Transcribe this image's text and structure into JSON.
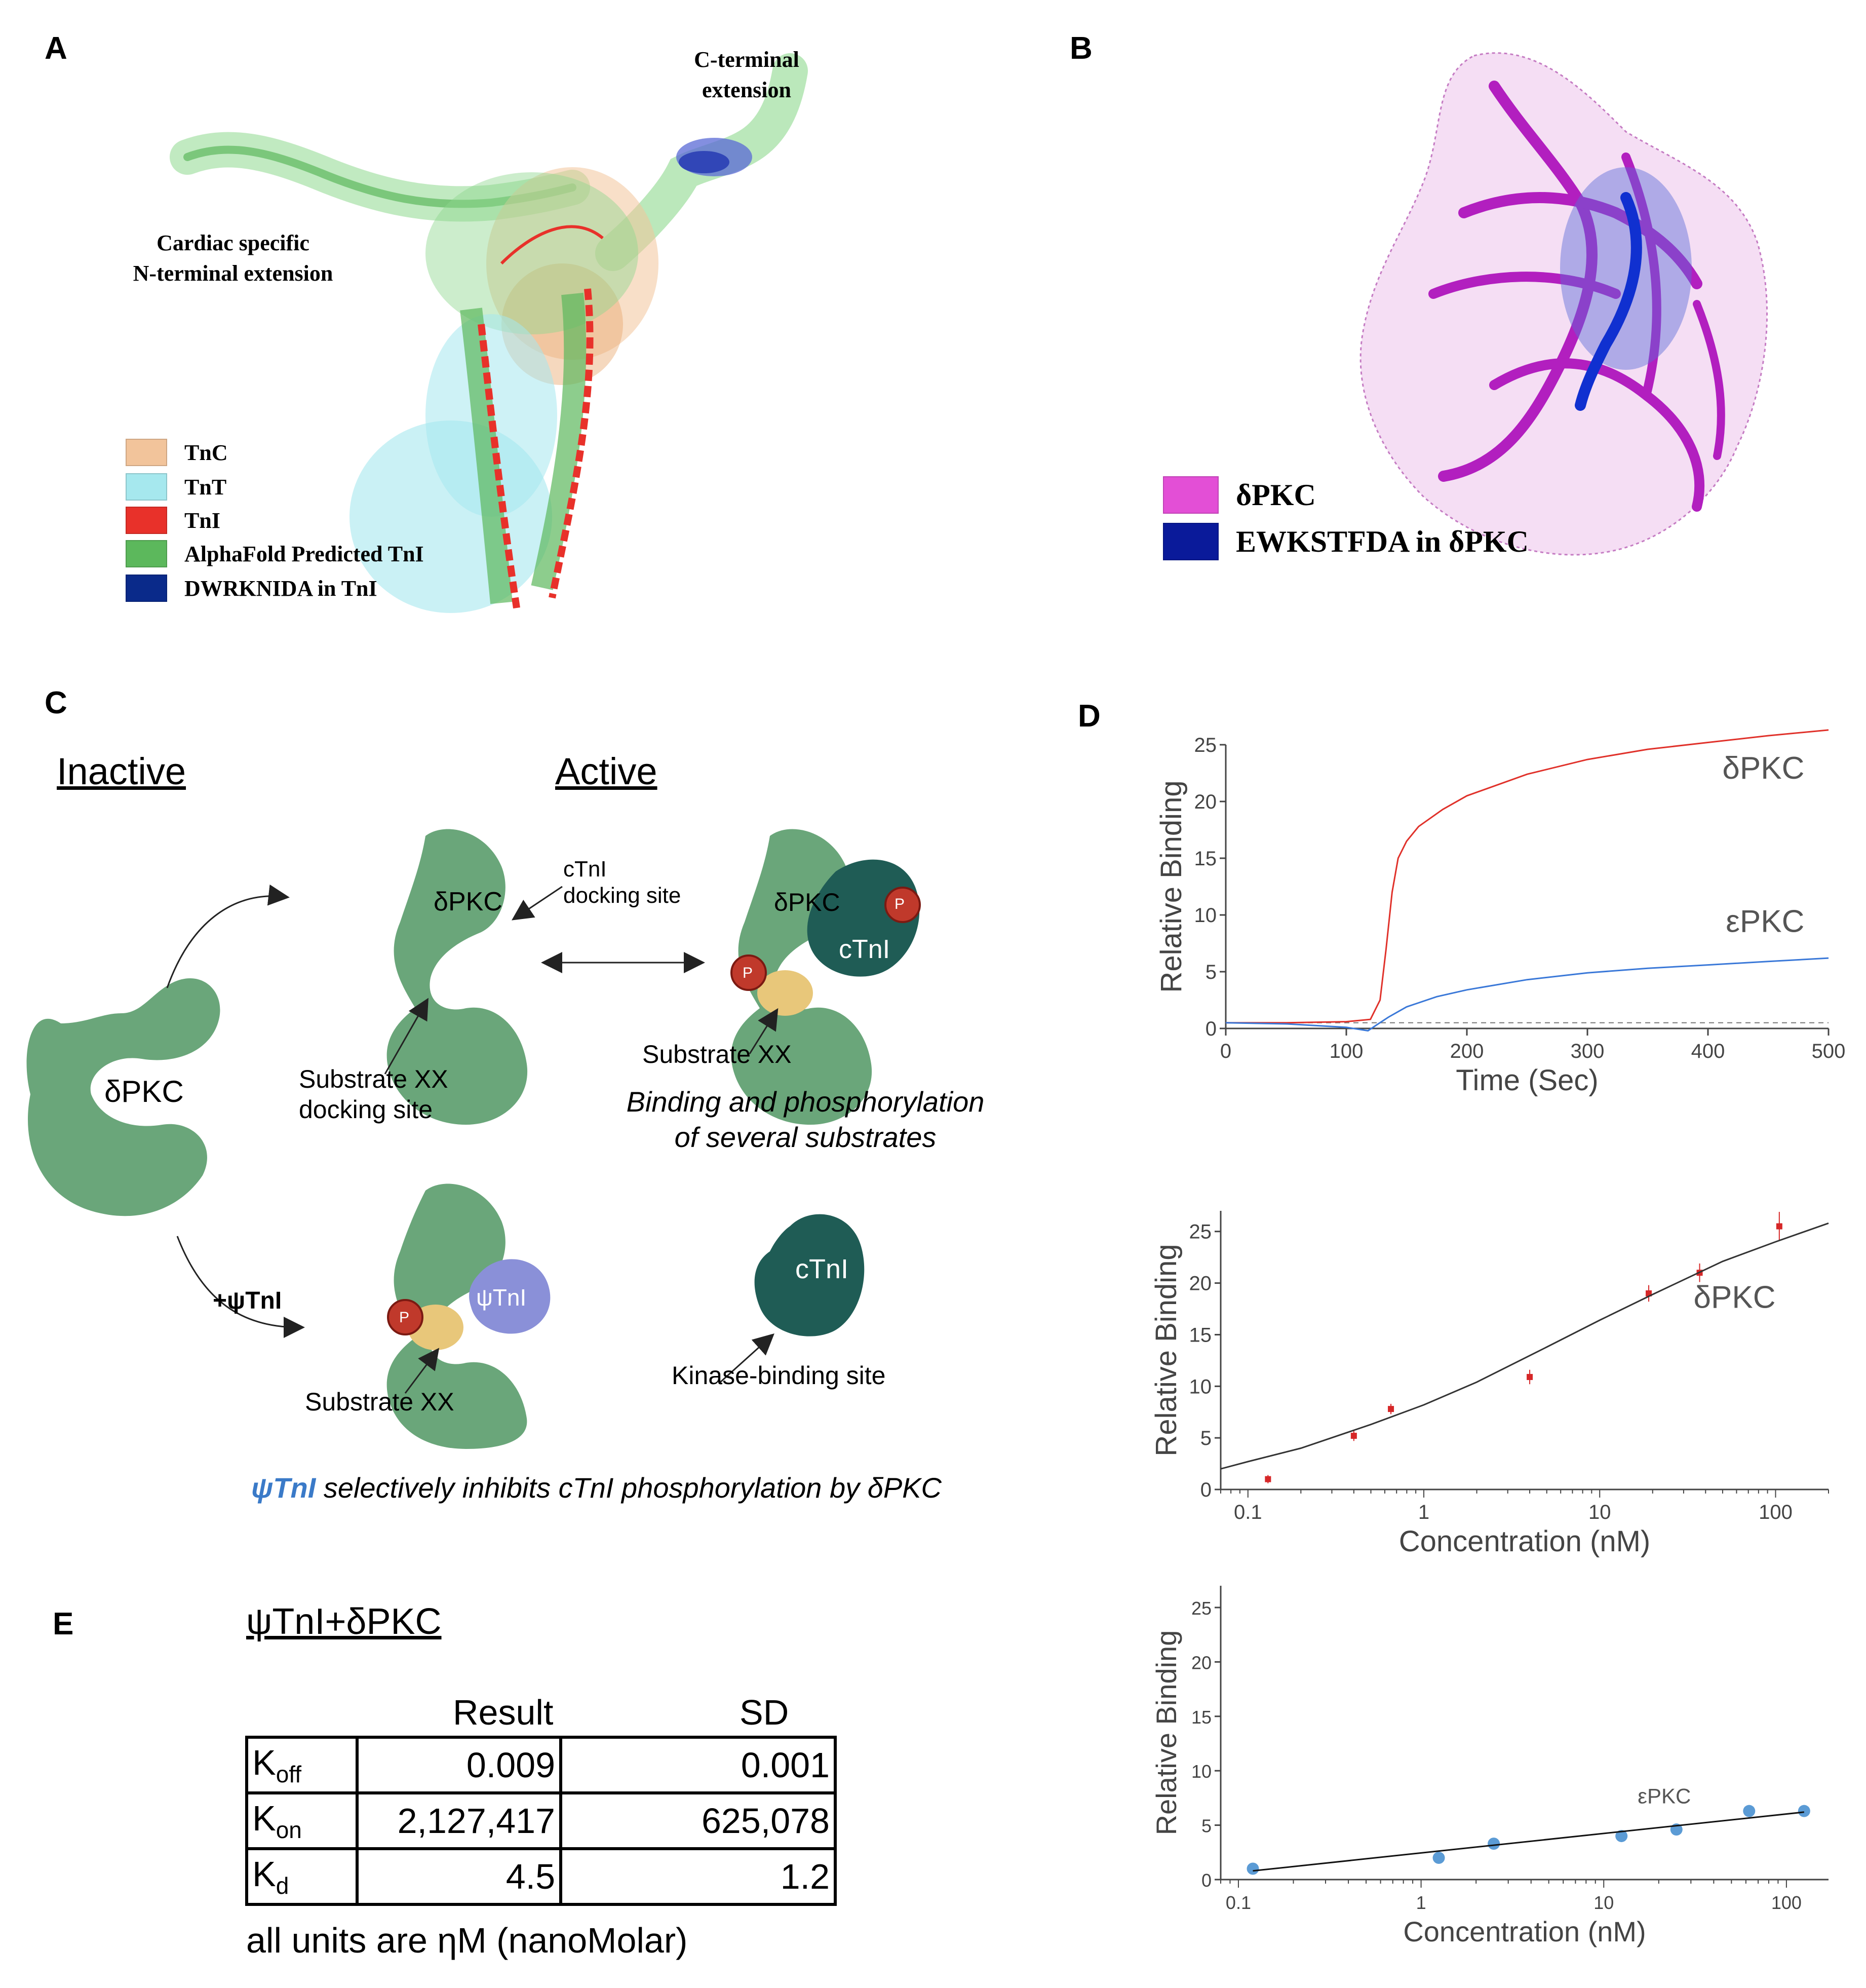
{
  "panels": {
    "A": {
      "label": "A",
      "c_terminal": [
        "C-terminal",
        "extension"
      ],
      "n_terminal": [
        "Cardiac specific",
        "N-terminal extension"
      ],
      "legend": [
        {
          "text": "TnC",
          "color": "#f2c49b"
        },
        {
          "text": "TnT",
          "color": "#a6e8ee"
        },
        {
          "text": "TnI",
          "color": "#e8312a"
        },
        {
          "text": "AlphaFold Predicted TnI",
          "color": "#5cb85c"
        },
        {
          "text": "DWRKNIDA in TnI",
          "color": "#0a2a8a"
        }
      ]
    },
    "B": {
      "label": "B",
      "legend": [
        {
          "text": "δPKC",
          "color": "#e34fd6"
        },
        {
          "text": "EWKSTFDA in δPKC",
          "color": "#0a1a9a"
        }
      ]
    },
    "C": {
      "label": "C",
      "inactive": "Inactive",
      "active": "Active",
      "dpkc_big": "δPKC",
      "dpkc_mid": "δPKC",
      "ctni_dock": [
        "cTnI",
        "docking site"
      ],
      "substrate_dock": [
        "Substrate XX",
        "docking site"
      ],
      "dpkc_right": "δPKC",
      "ctni_right": "cTnI",
      "p": "P",
      "substrate_right": "Substrate XX",
      "binding": [
        "Binding and phosphorylation",
        "of several substrates"
      ],
      "psi_arrow": "+ψTnI",
      "psi_label": "ψTnI",
      "substrate_bottom": "Substrate XX",
      "ctni_bottom": "cTnI",
      "kinase_site": "Kinase-binding site",
      "caption_psi": "ψTnI",
      "caption_rest": " selectively inhibits cTnI phosphorylation by δPKC"
    },
    "D": {
      "label": "D"
    },
    "E": {
      "label": "E",
      "title": "ψTnI+δPKC",
      "col_result": "Result",
      "col_sd": "SD",
      "rows": [
        {
          "name": "K",
          "sub": "off",
          "result": "0.009",
          "sd": "0.001"
        },
        {
          "name": "K",
          "sub": "on",
          "result": "2,127,417",
          "sd": "625,078"
        },
        {
          "name": "K",
          "sub": "d",
          "result": "4.5",
          "sd": "1.2"
        }
      ],
      "note": "all units are ηM (nanoMolar)"
    }
  },
  "chart_data": [
    {
      "type": "line",
      "title": "",
      "xlabel": "Time (Sec)",
      "ylabel": "Relative Binding",
      "xlim": [
        0,
        500
      ],
      "ylim": [
        0,
        25
      ],
      "xticks": [
        0,
        100,
        200,
        300,
        400,
        500
      ],
      "yticks": [
        0,
        5,
        10,
        15,
        20,
        25
      ],
      "baseline": 0.5,
      "series": [
        {
          "name": "δPKC",
          "color": "#e0312a",
          "x": [
            0,
            50,
            100,
            120,
            128,
            133,
            138,
            143,
            150,
            160,
            180,
            200,
            250,
            300,
            350,
            400,
            450,
            500
          ],
          "y": [
            0.5,
            0.5,
            0.6,
            0.8,
            2.5,
            7,
            12,
            15,
            16.5,
            17.8,
            19.3,
            20.5,
            22.4,
            23.7,
            24.6,
            25.2,
            25.8,
            26.3
          ]
        },
        {
          "name": "εPKC",
          "color": "#3a78d8",
          "x": [
            0,
            50,
            100,
            118,
            125,
            135,
            150,
            175,
            200,
            250,
            300,
            350,
            400,
            450,
            500
          ],
          "y": [
            0.5,
            0.4,
            0.1,
            -0.2,
            0.3,
            1.0,
            1.9,
            2.8,
            3.4,
            4.3,
            4.9,
            5.3,
            5.6,
            5.9,
            6.2
          ]
        }
      ]
    },
    {
      "type": "scatter",
      "title": "",
      "xlabel": "Concentration (nM)",
      "ylabel": "Relative Binding",
      "xscale": "log",
      "xlim": [
        0.07,
        200
      ],
      "ylim": [
        0,
        27
      ],
      "xtick_labels": [
        "0.1",
        "1",
        "10",
        "100"
      ],
      "yticks": [
        0,
        5,
        10,
        15,
        20,
        25
      ],
      "series": [
        {
          "name": "δPKC",
          "color": "#d62728",
          "x": [
            0.13,
            0.4,
            0.65,
            4,
            19,
            37,
            105
          ],
          "y": [
            1.0,
            5.2,
            7.8,
            10.9,
            19.0,
            21.0,
            25.5
          ],
          "err": [
            0.4,
            0.5,
            0.5,
            0.7,
            0.8,
            0.9,
            1.4
          ]
        },
        {
          "name": "fit",
          "color": "#333333",
          "x": [
            0.07,
            0.1,
            0.2,
            0.5,
            1,
            2,
            5,
            10,
            20,
            50,
            100,
            200
          ],
          "y": [
            2.0,
            2.7,
            4.0,
            6.3,
            8.2,
            10.4,
            13.8,
            16.4,
            18.9,
            22.1,
            24.0,
            25.8
          ]
        }
      ]
    },
    {
      "type": "scatter",
      "title": "",
      "xlabel": "Concentration (nM)",
      "ylabel": "Relative Binding",
      "xscale": "log",
      "xlim": [
        0.08,
        170
      ],
      "ylim": [
        0,
        27
      ],
      "xtick_labels": [
        "0.1",
        "1",
        "10",
        "100"
      ],
      "yticks": [
        0,
        5,
        10,
        15,
        20,
        25
      ],
      "series": [
        {
          "name": "εPKC",
          "color": "#5b9bd5",
          "x": [
            0.12,
            1.25,
            2.5,
            12.5,
            25,
            62.5,
            125
          ],
          "y": [
            1.0,
            2.0,
            3.3,
            4.0,
            4.6,
            6.3,
            6.3
          ]
        },
        {
          "name": "fit",
          "color": "#111111",
          "x": [
            0.12,
            125
          ],
          "y": [
            0.8,
            6.2
          ]
        }
      ]
    }
  ]
}
